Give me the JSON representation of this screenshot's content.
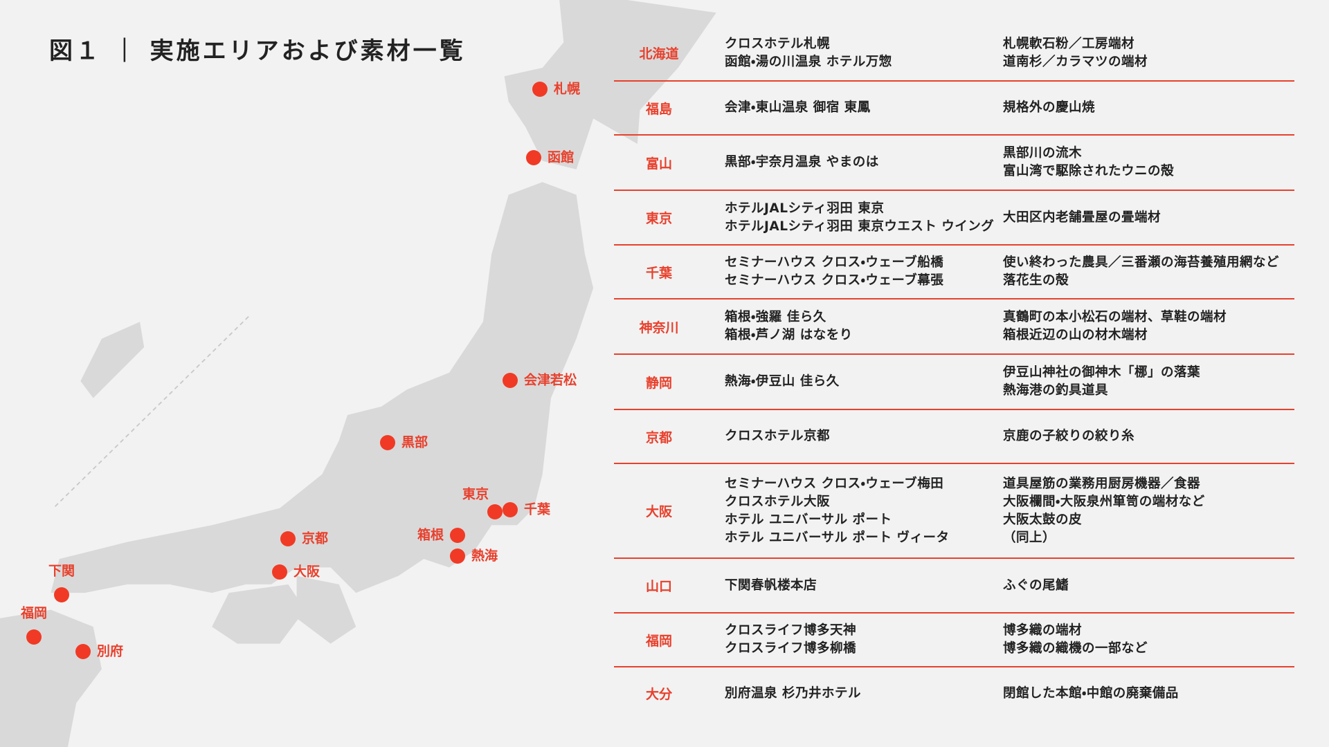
{
  "title": "図１ ｜ 実施エリアおよび素材一覧",
  "map": {
    "points": [
      {
        "label": "札幌"
      },
      {
        "label": "函館"
      },
      {
        "label": "会津若松"
      },
      {
        "label": "黒部"
      },
      {
        "label": "東京"
      },
      {
        "label": "千葉"
      },
      {
        "label": "箱根"
      },
      {
        "label": "熱海"
      },
      {
        "label": "京都"
      },
      {
        "label": "大阪"
      },
      {
        "label": "下関"
      },
      {
        "label": "福岡"
      },
      {
        "label": "別府"
      }
    ]
  },
  "table": {
    "rows": [
      {
        "area": "北海道",
        "hotels": [
          "クロスホテル札幌",
          "函館・湯の川温泉 ホテル万惣"
        ],
        "materials": [
          "札幌軟石粉／工房端材",
          "道南杉／カラマツの端材"
        ]
      },
      {
        "area": "福島",
        "hotels": [
          "会津・東山温泉 御宿 東鳳"
        ],
        "materials": [
          "規格外の慶山焼"
        ]
      },
      {
        "area": "富山",
        "hotels": [
          "黒部・宇奈月温泉 やまのは"
        ],
        "materials": [
          "黒部川の流木",
          "富山湾で駆除されたウニの殻"
        ]
      },
      {
        "area": "東京",
        "hotels": [
          "ホテルJALシティ羽田 東京",
          "ホテルJALシティ羽田 東京ウエスト ウイング"
        ],
        "materials": [
          "大田区内老舗畳屋の畳端材"
        ]
      },
      {
        "area": "千葉",
        "hotels": [
          "セミナーハウス クロス・ウェーブ船橋",
          "セミナーハウス クロス・ウェーブ幕張"
        ],
        "materials": [
          "使い終わった農具／三番瀬の海苔養殖用網など",
          "落花生の殻"
        ]
      },
      {
        "area": "神奈川",
        "hotels": [
          "箱根・強羅 佳ら久",
          "箱根・芦ノ湖 はなをり"
        ],
        "materials": [
          "真鶴町の本小松石の端材、草鞋の端材",
          "箱根近辺の山の材木端材"
        ]
      },
      {
        "area": "静岡",
        "hotels": [
          "熱海・伊豆山 佳ら久"
        ],
        "materials": [
          "伊豆山神社の御神木「梛」の落葉",
          "熱海港の釣具道具"
        ]
      },
      {
        "area": "京都",
        "hotels": [
          "クロスホテル京都"
        ],
        "materials": [
          "京鹿の子絞りの絞り糸"
        ]
      },
      {
        "area": "大阪",
        "hotels": [
          "セミナーハウス クロス・ウェーブ梅田",
          "クロスホテル大阪",
          "ホテル ユニバーサル ポート",
          "ホテル ユニバーサル ポート ヴィータ"
        ],
        "materials": [
          "道具屋筋の業務用厨房機器／食器",
          "大阪欄間・大阪泉州箪笥の端材など",
          "大阪太鼓の皮",
          "（同上）"
        ]
      },
      {
        "area": "山口",
        "hotels": [
          "下関春帆楼本店"
        ],
        "materials": [
          "ふぐの尾鰭"
        ]
      },
      {
        "area": "福岡",
        "hotels": [
          "クロスライフ博多天神",
          "クロスライフ博多柳橋"
        ],
        "materials": [
          "博多織の端材",
          "博多織の織機の一部など"
        ]
      },
      {
        "area": "大分",
        "hotels": [
          "別府温泉 杉乃井ホテル"
        ],
        "materials": [
          "閉館した本館・中館の廃棄備品"
        ]
      }
    ]
  }
}
